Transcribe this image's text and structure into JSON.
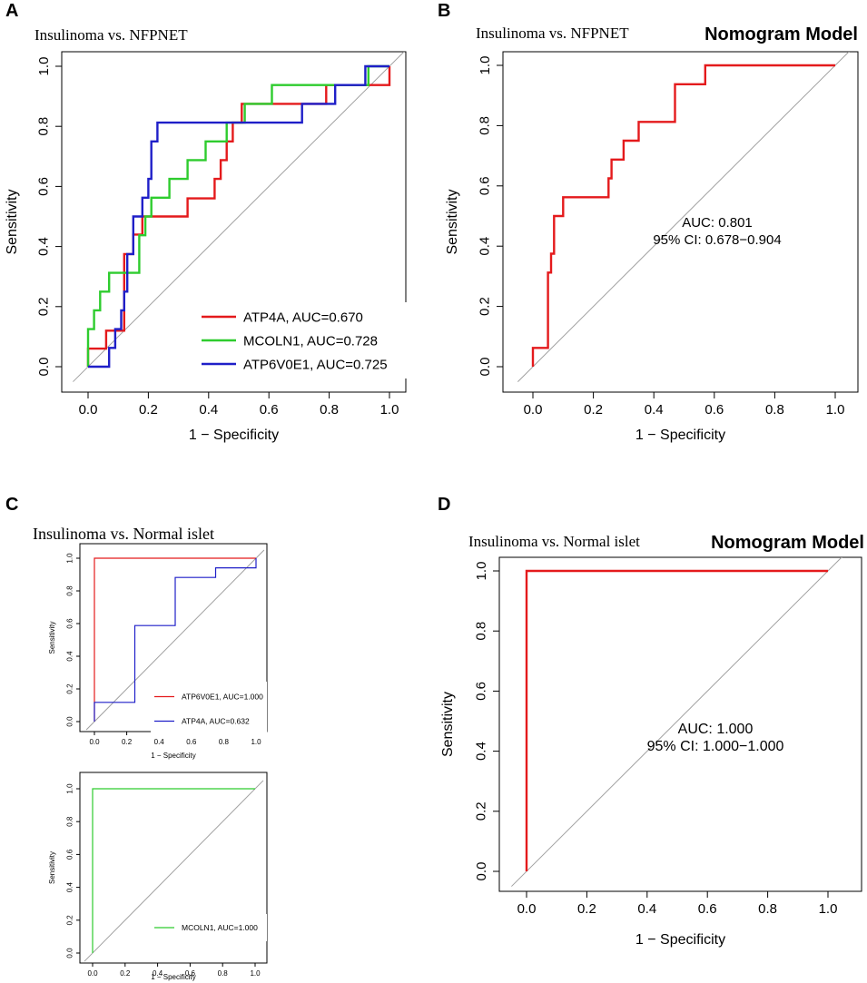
{
  "figure": {
    "panel_labels": [
      "A",
      "B",
      "C",
      "D"
    ],
    "colors": {
      "red": "#e41a1c",
      "green": "#2ecc2e",
      "blue": "#1f1fc8",
      "diagonal": "#a0a0a0"
    }
  },
  "chart_data": [
    {
      "id": "A",
      "type": "line",
      "title": "Insulinoma vs. NFPNET",
      "xlabel": "1 − Specificity",
      "ylabel": "Sensitivity",
      "xlim": [
        0,
        1
      ],
      "ylim": [
        0,
        1
      ],
      "ticks": [
        "0.0",
        "0.2",
        "0.4",
        "0.6",
        "0.8",
        "1.0"
      ],
      "legend_position": "bottom-right",
      "series": [
        {
          "name": "ATP4A, AUC=0.670",
          "color": "#e41a1c",
          "x": [
            0,
            0,
            0.06,
            0.06,
            0.12,
            0.12,
            0.15,
            0.15,
            0.18,
            0.18,
            0.24,
            0.24,
            0.33,
            0.33,
            0.42,
            0.42,
            0.44,
            0.44,
            0.46,
            0.46,
            0.48,
            0.48,
            0.51,
            0.51,
            0.79,
            0.79,
            0.94,
            0.94,
            1.0,
            1.0
          ],
          "y": [
            0,
            0.06,
            0.06,
            0.12,
            0.12,
            0.375,
            0.375,
            0.44,
            0.44,
            0.5,
            0.5,
            0.5,
            0.5,
            0.56,
            0.56,
            0.625,
            0.625,
            0.6875,
            0.6875,
            0.75,
            0.75,
            0.8125,
            0.8125,
            0.875,
            0.875,
            0.9375,
            0.9375,
            0.9375,
            0.9375,
            1.0
          ]
        },
        {
          "name": "MCOLN1, AUC=0.728",
          "color": "#2ecc2e",
          "x": [
            0,
            0,
            0.02,
            0.02,
            0.04,
            0.04,
            0.07,
            0.07,
            0.17,
            0.17,
            0.19,
            0.19,
            0.21,
            0.21,
            0.27,
            0.27,
            0.33,
            0.33,
            0.39,
            0.39,
            0.46,
            0.46,
            0.52,
            0.52,
            0.61,
            0.61,
            0.93,
            0.93,
            1.0
          ],
          "y": [
            0,
            0.125,
            0.125,
            0.1875,
            0.1875,
            0.25,
            0.25,
            0.3125,
            0.3125,
            0.4375,
            0.4375,
            0.5,
            0.5,
            0.5625,
            0.5625,
            0.625,
            0.625,
            0.6875,
            0.6875,
            0.75,
            0.75,
            0.8125,
            0.8125,
            0.875,
            0.875,
            0.9375,
            0.9375,
            1.0,
            1.0
          ]
        },
        {
          "name": "ATP6V0E1, AUC=0.725",
          "color": "#1f1fc8",
          "x": [
            0,
            0.07,
            0.07,
            0.09,
            0.09,
            0.11,
            0.11,
            0.12,
            0.12,
            0.13,
            0.13,
            0.15,
            0.15,
            0.18,
            0.18,
            0.2,
            0.2,
            0.21,
            0.21,
            0.23,
            0.23,
            0.71,
            0.71,
            0.82,
            0.82,
            0.92,
            0.92,
            1.0
          ],
          "y": [
            0,
            0,
            0.0625,
            0.0625,
            0.125,
            0.125,
            0.1875,
            0.1875,
            0.25,
            0.25,
            0.375,
            0.375,
            0.5,
            0.5,
            0.5625,
            0.5625,
            0.625,
            0.625,
            0.75,
            0.75,
            0.8125,
            0.8125,
            0.875,
            0.875,
            0.9375,
            0.9375,
            1.0,
            1.0
          ]
        }
      ]
    },
    {
      "id": "B",
      "type": "line",
      "title": "Insulinoma vs. NFPNET",
      "subtitle": "Nomogram Model",
      "xlabel": "1 − Specificity",
      "ylabel": "Sensitivity",
      "xlim": [
        0,
        1
      ],
      "ylim": [
        0,
        1
      ],
      "ticks": [
        "0.0",
        "0.2",
        "0.4",
        "0.6",
        "0.8",
        "1.0"
      ],
      "annotation": [
        "AUC: 0.801",
        "95% CI: 0.678−0.904"
      ],
      "series": [
        {
          "name": "Nomogram",
          "color": "#e41a1c",
          "x": [
            0,
            0,
            0.05,
            0.05,
            0.06,
            0.06,
            0.07,
            0.07,
            0.1,
            0.1,
            0.25,
            0.25,
            0.26,
            0.26,
            0.3,
            0.3,
            0.32,
            0.32,
            0.35,
            0.35,
            0.47,
            0.47,
            0.57,
            0.57,
            1.0
          ],
          "y": [
            0,
            0.0625,
            0.0625,
            0.3125,
            0.3125,
            0.375,
            0.375,
            0.5,
            0.5,
            0.5625,
            0.5625,
            0.625,
            0.625,
            0.6875,
            0.6875,
            0.75,
            0.75,
            0.75,
            0.75,
            0.8125,
            0.8125,
            0.9375,
            0.9375,
            1.0,
            1.0
          ]
        }
      ]
    },
    {
      "id": "C1",
      "type": "line",
      "title": "Insulinoma vs. Normal islet",
      "xlabel": "1 − Specificity",
      "ylabel": "Sensitivity",
      "xlim": [
        0,
        1
      ],
      "ylim": [
        0,
        1
      ],
      "ticks": [
        "0.0",
        "0.2",
        "0.4",
        "0.6",
        "0.8",
        "1.0"
      ],
      "legend_position": "bottom-right",
      "series": [
        {
          "name": "ATP6V0E1, AUC=1.000",
          "color": "#e41a1c",
          "x": [
            0,
            0,
            1.0
          ],
          "y": [
            0,
            1.0,
            1.0
          ]
        },
        {
          "name": "ATP4A, AUC=0.632",
          "color": "#1f1fc8",
          "x": [
            0,
            0,
            0.25,
            0.25,
            0.5,
            0.5,
            0.75,
            0.75,
            1.0,
            1.0
          ],
          "y": [
            0,
            0.118,
            0.118,
            0.588,
            0.588,
            0.882,
            0.882,
            0.941,
            0.941,
            1.0
          ]
        }
      ]
    },
    {
      "id": "C2",
      "type": "line",
      "title": "",
      "xlabel": "1 − Specificity",
      "ylabel": "Sensitivity",
      "xlim": [
        0,
        1
      ],
      "ylim": [
        0,
        1
      ],
      "ticks": [
        "0.0",
        "0.2",
        "0.4",
        "0.6",
        "0.8",
        "1.0"
      ],
      "legend_position": "bottom-right",
      "series": [
        {
          "name": "MCOLN1, AUC=1.000",
          "color": "#2ecc2e",
          "x": [
            0,
            0,
            1.0
          ],
          "y": [
            0,
            1.0,
            1.0
          ]
        }
      ]
    },
    {
      "id": "D",
      "type": "line",
      "title": "Insulinoma vs. Normal islet",
      "subtitle": "Nomogram Model",
      "xlabel": "1 − Specificity",
      "ylabel": "Sensitivity",
      "xlim": [
        0,
        1
      ],
      "ylim": [
        0,
        1
      ],
      "ticks": [
        "0.0",
        "0.2",
        "0.4",
        "0.6",
        "0.8",
        "1.0"
      ],
      "annotation": [
        "AUC: 1.000",
        "95% CI: 1.000−1.000"
      ],
      "series": [
        {
          "name": "Nomogram",
          "color": "#e41a1c",
          "x": [
            0,
            0,
            1.0
          ],
          "y": [
            0,
            1.0,
            1.0
          ]
        }
      ]
    }
  ]
}
